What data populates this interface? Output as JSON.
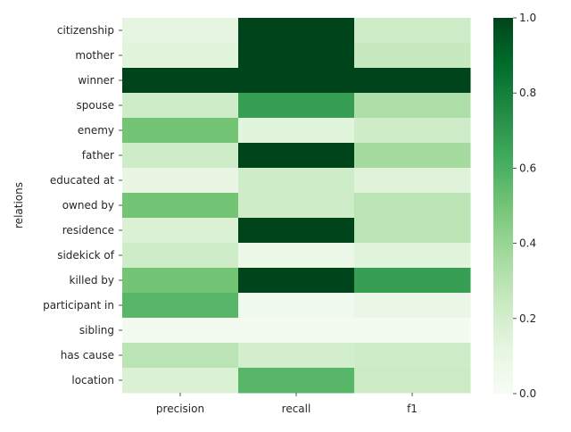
{
  "chart_data": {
    "type": "heatmap",
    "title": "",
    "xlabel": "",
    "ylabel": "relations",
    "columns": [
      "precision",
      "recall",
      "f1"
    ],
    "rows": [
      "citizenship",
      "mother",
      "winner",
      "spouse",
      "enemy",
      "father",
      "educated at",
      "owned by",
      "residence",
      "sidekick of",
      "killed by",
      "participant in",
      "sibling",
      "has cause",
      "location"
    ],
    "values": [
      [
        0.12,
        1.0,
        0.22
      ],
      [
        0.14,
        1.0,
        0.25
      ],
      [
        1.0,
        1.0,
        1.0
      ],
      [
        0.22,
        0.67,
        0.33
      ],
      [
        0.5,
        0.14,
        0.22
      ],
      [
        0.22,
        1.0,
        0.36
      ],
      [
        0.1,
        0.22,
        0.15
      ],
      [
        0.5,
        0.22,
        0.29
      ],
      [
        0.17,
        1.0,
        0.29
      ],
      [
        0.22,
        0.08,
        0.14
      ],
      [
        0.5,
        1.0,
        0.67
      ],
      [
        0.57,
        0.05,
        0.09
      ],
      [
        0.03,
        0.03,
        0.03
      ],
      [
        0.29,
        0.2,
        0.22
      ],
      [
        0.17,
        0.57,
        0.23
      ]
    ],
    "colorbar": {
      "min": 0,
      "max": 1,
      "ticks": [
        "0.0",
        "0.2",
        "0.4",
        "0.6",
        "0.8",
        "1.0"
      ],
      "colors": [
        "#f7fcf5",
        "#e5f5e0",
        "#c7e9c0",
        "#a1d99b",
        "#74c476",
        "#41ab5d",
        "#238b45",
        "#006d2c",
        "#00441b"
      ]
    }
  }
}
